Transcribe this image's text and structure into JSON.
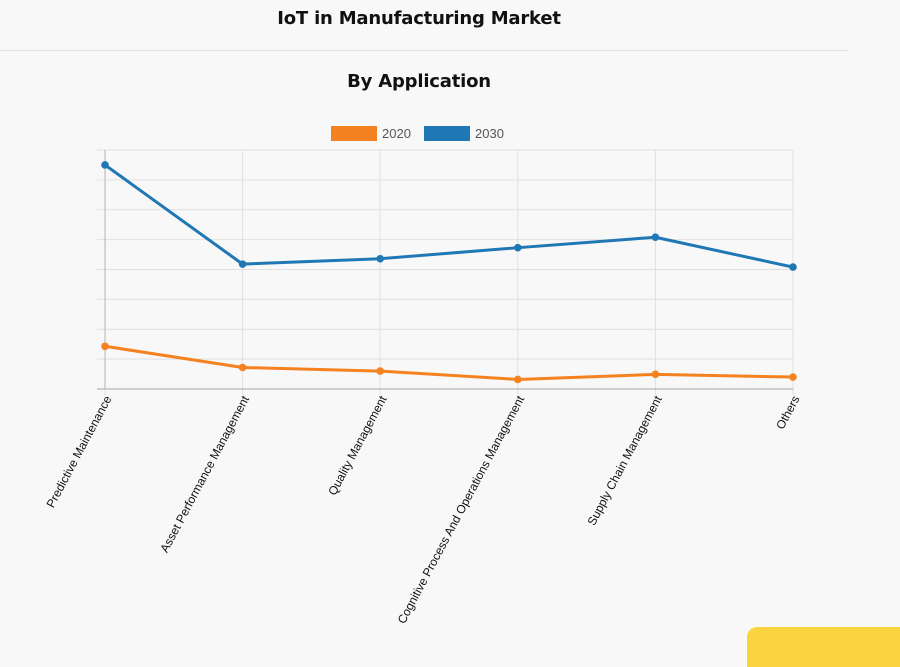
{
  "page_title": "IoT in Manufacturing Market",
  "chart_data": {
    "type": "line",
    "title": "By Application",
    "xlabel": "",
    "ylabel": "",
    "categories": [
      "Predictive Maintenance",
      "Asset Performance Management",
      "Quality Management",
      "Cognitive Process And Operations Management",
      "Supply Chain Management",
      "Others"
    ],
    "ylim": [
      0,
      8
    ],
    "y_tick_labels_shown": false,
    "grid": true,
    "legend_position": "top-center",
    "series": [
      {
        "name": "2020",
        "color": "#f58220",
        "values": [
          1.43,
          0.72,
          0.6,
          0.32,
          0.49,
          0.4
        ]
      },
      {
        "name": "2030",
        "color": "#1f77b4",
        "values": [
          7.5,
          4.18,
          4.36,
          4.73,
          5.08,
          4.08
        ]
      }
    ]
  },
  "colors": {
    "background": "#f8f8f8",
    "grid": "#e0e0e0",
    "axis": "#b5b5b5",
    "badge": "#fbd33f"
  }
}
